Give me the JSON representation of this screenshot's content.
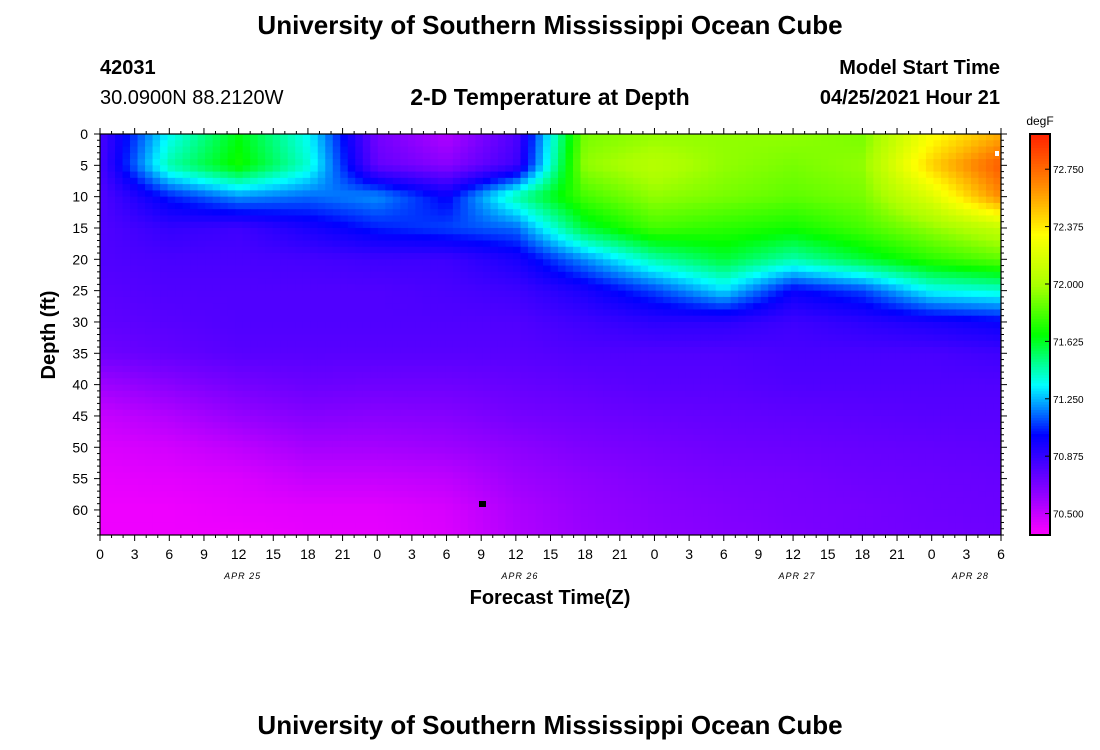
{
  "page": {
    "title_top": "University of Southern Mississippi Ocean Cube",
    "title_bottom": "University of Southern Mississippi Ocean Cube",
    "station_id": "42031",
    "coordinates": "30.0900N  88.2120W",
    "plot_title": "2-D Temperature at Depth",
    "model_start_label": "Model Start Time",
    "model_start_value": "04/25/2021 Hour 21"
  },
  "chart_data": {
    "type": "heatmap",
    "title": "2-D Temperature at Depth",
    "xlabel": "Forecast Time(Z)",
    "ylabel": "Depth (ft)",
    "colorbar_label": "degF",
    "x_ticks": [
      "0",
      "3",
      "6",
      "9",
      "12",
      "15",
      "18",
      "21",
      "0",
      "3",
      "6",
      "9",
      "12",
      "15",
      "18",
      "21",
      "0",
      "3",
      "6",
      "9",
      "12",
      "15",
      "18",
      "21",
      "0",
      "3",
      "6"
    ],
    "date_labels": [
      {
        "label": "APR 25",
        "tick_index": 4
      },
      {
        "label": "APR 26",
        "tick_index": 12
      },
      {
        "label": "APR 27",
        "tick_index": 20
      },
      {
        "label": "APR 28",
        "tick_index": 25
      }
    ],
    "y_ticks": [
      0,
      5,
      10,
      15,
      20,
      25,
      30,
      35,
      40,
      45,
      50,
      55,
      60
    ],
    "y_range": [
      0,
      64
    ],
    "x_range_hours": [
      0,
      78
    ],
    "colorbar_ticks": [
      "70.500",
      "70.875",
      "71.250",
      "71.625",
      "72.000",
      "72.375",
      "72.750"
    ],
    "colorbar_range": [
      70.36,
      72.98
    ],
    "colormap": [
      "#ff00ff",
      "#7a00ff",
      "#0000ff",
      "#00ffff",
      "#00ff00",
      "#aaff00",
      "#ffff00",
      "#ff8800",
      "#ff2200"
    ],
    "x_hours": [
      0,
      6,
      12,
      18,
      24,
      30,
      36,
      42,
      48,
      54,
      60,
      66,
      72,
      78
    ],
    "depth_levels_ft": [
      0,
      5,
      10,
      15,
      20,
      25,
      30,
      35,
      40,
      45,
      50,
      55,
      60,
      64
    ],
    "temperature_grid_degF": [
      [
        70.82,
        71.35,
        71.65,
        71.35,
        70.7,
        70.55,
        70.8,
        71.9,
        71.95,
        71.95,
        71.95,
        71.9,
        72.3,
        72.55
      ],
      [
        70.82,
        71.45,
        71.7,
        71.4,
        70.75,
        70.65,
        70.85,
        71.95,
        72.05,
        71.95,
        71.9,
        71.95,
        72.45,
        72.8
      ],
      [
        70.8,
        71.05,
        71.2,
        71.15,
        71.2,
        71.0,
        71.45,
        71.8,
        71.95,
        71.9,
        71.85,
        71.9,
        72.2,
        72.65
      ],
      [
        70.8,
        70.88,
        70.85,
        70.95,
        71.05,
        71.1,
        71.15,
        71.6,
        71.8,
        71.75,
        71.7,
        71.8,
        71.95,
        72.1
      ],
      [
        70.8,
        70.82,
        70.82,
        70.83,
        70.85,
        70.85,
        70.95,
        71.2,
        71.45,
        71.6,
        71.45,
        71.6,
        71.75,
        71.85
      ],
      [
        70.78,
        70.8,
        70.8,
        70.8,
        70.8,
        70.82,
        70.85,
        70.95,
        71.1,
        71.3,
        71.0,
        71.1,
        71.35,
        71.4
      ],
      [
        70.76,
        70.78,
        70.8,
        70.8,
        70.8,
        70.8,
        70.8,
        70.85,
        70.9,
        70.9,
        70.85,
        70.9,
        70.95,
        71.0
      ],
      [
        70.72,
        70.75,
        70.78,
        70.78,
        70.78,
        70.78,
        70.78,
        70.8,
        70.8,
        70.8,
        70.82,
        70.82,
        70.82,
        70.85
      ],
      [
        70.6,
        70.65,
        70.7,
        70.73,
        70.72,
        70.72,
        70.74,
        70.76,
        70.78,
        70.78,
        70.8,
        70.8,
        70.8,
        70.8
      ],
      [
        70.5,
        70.55,
        70.62,
        70.66,
        70.65,
        70.66,
        70.7,
        70.72,
        70.74,
        70.75,
        70.76,
        70.77,
        70.78,
        70.78
      ],
      [
        70.45,
        70.47,
        70.52,
        70.58,
        70.58,
        70.6,
        70.64,
        70.68,
        70.7,
        70.72,
        70.73,
        70.74,
        70.75,
        70.76
      ],
      [
        70.42,
        70.43,
        70.45,
        70.5,
        70.5,
        70.52,
        70.6,
        70.64,
        70.67,
        70.69,
        70.7,
        70.72,
        70.73,
        70.74
      ],
      [
        70.4,
        70.4,
        70.42,
        70.43,
        70.43,
        70.46,
        70.56,
        70.62,
        70.65,
        70.67,
        70.69,
        70.7,
        70.72,
        70.73
      ],
      [
        70.4,
        70.4,
        70.4,
        70.42,
        70.42,
        70.45,
        70.55,
        70.61,
        70.64,
        70.66,
        70.68,
        70.7,
        70.71,
        70.72
      ]
    ]
  }
}
